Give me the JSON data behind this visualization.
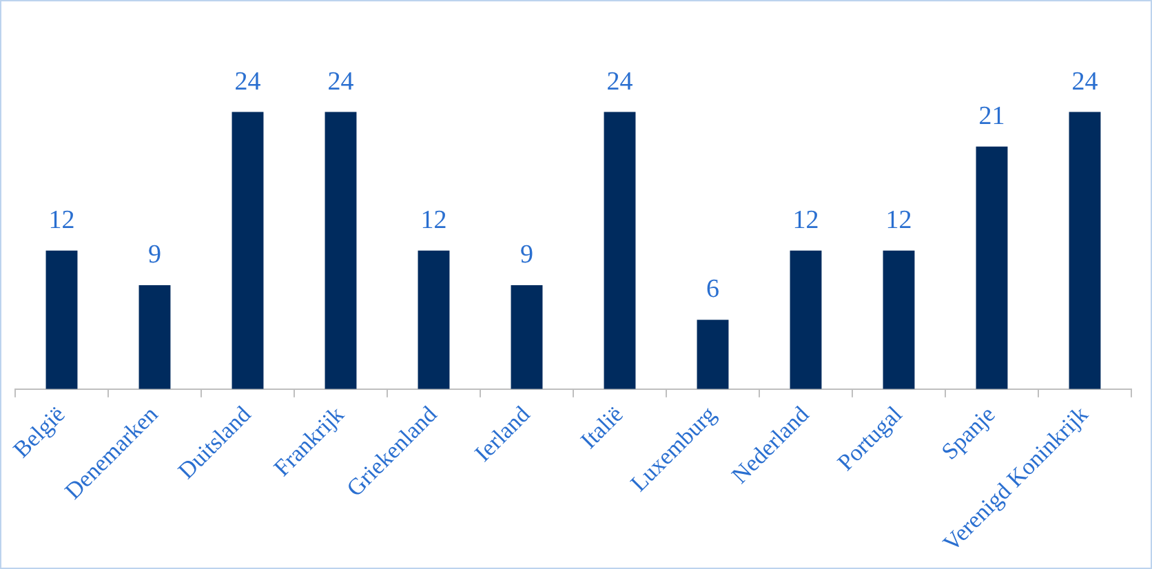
{
  "chart_data": {
    "type": "bar",
    "categories": [
      "België",
      "Denemarken",
      "Duitsland",
      "Frankrijk",
      "Griekenland",
      "Ierland",
      "Italië",
      "Luxemburg",
      "Nederland",
      "Portugal",
      "Spanje",
      "Verenigd Koninkrijk"
    ],
    "values": [
      12,
      9,
      24,
      24,
      12,
      9,
      24,
      6,
      12,
      12,
      21,
      24
    ],
    "color": "#002b5e",
    "data_labels": true,
    "grid": false,
    "legend": false
  }
}
